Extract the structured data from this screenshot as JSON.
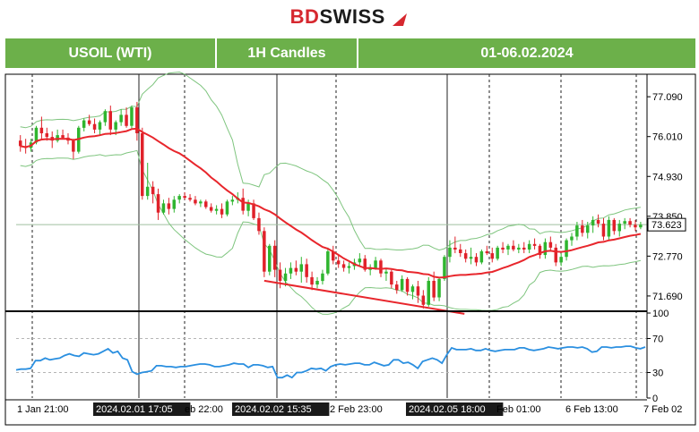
{
  "brand": {
    "part1": "BD",
    "part2": "SWISS"
  },
  "header": {
    "symbol": "USOIL (WTI)",
    "timeframe": "1H Candles",
    "date_range": "01-06.02.2024"
  },
  "colors": {
    "header_green": "#6cb04a",
    "bull": "#2fb52f",
    "bear": "#e0212a",
    "ma_red": "#e8262c",
    "band_green": "#7fc57f",
    "rsi_blue": "#2a8fe0",
    "brand_red": "#d6282f"
  },
  "chart_data": {
    "type": "candlestick",
    "price_axis": {
      "ticks": [
        77.09,
        76.01,
        74.93,
        73.85,
        72.77,
        71.69
      ],
      "range": [
        71.3,
        77.7
      ]
    },
    "current_price": {
      "label": "73.623",
      "value": 73.623
    },
    "time_labels": [
      "1 Jan 21:00",
      "2024.02.01 17:05",
      "eb 22:00",
      "2024.02.02 15:35",
      "2 Feb 23:00",
      "2024.02.05 18:00",
      "Feb 01:00",
      "6 Feb 13:00",
      "7 Feb 02"
    ],
    "highlighted_time_labels": [
      "2024.02.01 17:05",
      "2024.02.02 15:35",
      "2024.02.05 18:00"
    ],
    "rsi": {
      "ticks": [
        100,
        70,
        30,
        0
      ],
      "levels": [
        70,
        30
      ],
      "range": [
        0,
        100
      ],
      "values": [
        33,
        34,
        34,
        35,
        44,
        44,
        47,
        45,
        46,
        47,
        50,
        52,
        50,
        49,
        53,
        52,
        51,
        52,
        55,
        58,
        53,
        55,
        47,
        45,
        31,
        28,
        30,
        31,
        32,
        38,
        38,
        37,
        37,
        36,
        37,
        37,
        38,
        39,
        40,
        40,
        39,
        37,
        37,
        38,
        39,
        41,
        40,
        40,
        36,
        39,
        39,
        38,
        36,
        37,
        24,
        24,
        27,
        24,
        30,
        30,
        32,
        35,
        34,
        35,
        32,
        37,
        39,
        40,
        39,
        40,
        41,
        41,
        39,
        39,
        42,
        40,
        38,
        39,
        45,
        45,
        41,
        42,
        39,
        35,
        43,
        45,
        47,
        45,
        41,
        51,
        59,
        57,
        57,
        57,
        58,
        56,
        56,
        58,
        56,
        55,
        56,
        57,
        57,
        57,
        59,
        59,
        57,
        56,
        57,
        58,
        60,
        59,
        58,
        59,
        60,
        60,
        59,
        60,
        58,
        54,
        55,
        60,
        60,
        59,
        60,
        60,
        61,
        61,
        59,
        58,
        60
      ]
    },
    "candles": [
      [
        75.9,
        76.05,
        75.6,
        75.75
      ],
      [
        75.75,
        75.95,
        75.55,
        75.7
      ],
      [
        75.7,
        75.95,
        75.6,
        75.85
      ],
      [
        75.85,
        76.3,
        75.8,
        76.25
      ],
      [
        76.25,
        76.55,
        75.95,
        76.1
      ],
      [
        76.1,
        76.25,
        75.9,
        76.0
      ],
      [
        76.0,
        76.15,
        75.7,
        75.9
      ],
      [
        75.9,
        76.2,
        75.85,
        76.05
      ],
      [
        76.05,
        76.2,
        75.95,
        75.98
      ],
      [
        75.98,
        76.1,
        75.8,
        75.9
      ],
      [
        75.9,
        75.95,
        75.4,
        75.6
      ],
      [
        75.6,
        76.3,
        75.55,
        76.25
      ],
      [
        76.25,
        76.5,
        76.15,
        76.45
      ],
      [
        76.45,
        76.6,
        76.3,
        76.35
      ],
      [
        76.35,
        76.5,
        76.1,
        76.2
      ],
      [
        76.2,
        76.45,
        76.05,
        76.4
      ],
      [
        76.4,
        76.75,
        76.3,
        76.7
      ],
      [
        76.7,
        76.85,
        76.05,
        76.2
      ],
      [
        76.2,
        76.45,
        76.05,
        76.4
      ],
      [
        76.4,
        76.75,
        76.3,
        76.6
      ],
      [
        76.6,
        76.8,
        76.25,
        76.3
      ],
      [
        76.3,
        76.85,
        76.2,
        76.8
      ],
      [
        76.8,
        76.95,
        75.9,
        76.1
      ],
      [
        76.1,
        76.25,
        74.3,
        74.4
      ],
      [
        74.4,
        75.3,
        74.3,
        74.65
      ],
      [
        74.65,
        74.8,
        74.2,
        74.45
      ],
      [
        74.45,
        74.6,
        73.75,
        73.95
      ],
      [
        73.95,
        74.3,
        73.9,
        74.2
      ],
      [
        74.2,
        74.35,
        73.9,
        74.05
      ],
      [
        74.05,
        74.4,
        73.95,
        74.3
      ],
      [
        74.3,
        74.45,
        74.2,
        74.4
      ],
      [
        74.4,
        74.5,
        74.3,
        74.35
      ],
      [
        74.35,
        74.45,
        74.25,
        74.3
      ],
      [
        74.3,
        74.4,
        74.15,
        74.2
      ],
      [
        74.2,
        74.3,
        74.1,
        74.25
      ],
      [
        74.25,
        74.3,
        74.05,
        74.1
      ],
      [
        74.1,
        74.2,
        73.95,
        74.0
      ],
      [
        74.0,
        74.15,
        73.9,
        74.05
      ],
      [
        74.05,
        74.2,
        73.8,
        73.9
      ],
      [
        73.9,
        74.3,
        73.85,
        74.25
      ],
      [
        74.25,
        74.4,
        74.15,
        74.3
      ],
      [
        74.3,
        74.5,
        74.2,
        74.35
      ],
      [
        74.35,
        74.6,
        73.9,
        74.0
      ],
      [
        74.0,
        74.3,
        73.85,
        74.2
      ],
      [
        74.2,
        74.3,
        73.75,
        73.8
      ],
      [
        73.8,
        73.95,
        73.35,
        73.45
      ],
      [
        73.45,
        73.55,
        72.2,
        72.35
      ],
      [
        72.35,
        73.1,
        72.25,
        73.05
      ],
      [
        73.05,
        73.2,
        72.2,
        72.4
      ],
      [
        72.4,
        72.6,
        71.9,
        72.1
      ],
      [
        72.1,
        72.45,
        71.95,
        72.3
      ],
      [
        72.3,
        72.6,
        72.15,
        72.45
      ],
      [
        72.45,
        72.65,
        72.25,
        72.35
      ],
      [
        72.35,
        72.75,
        72.05,
        72.55
      ],
      [
        72.55,
        72.7,
        72.05,
        72.2
      ],
      [
        72.2,
        72.35,
        71.85,
        72.0
      ],
      [
        72.0,
        72.2,
        71.9,
        72.1
      ],
      [
        72.1,
        72.4,
        72.0,
        72.3
      ],
      [
        72.3,
        73.0,
        72.25,
        72.9
      ],
      [
        72.9,
        73.05,
        72.55,
        72.65
      ],
      [
        72.65,
        72.8,
        72.45,
        72.55
      ],
      [
        72.55,
        72.65,
        72.35,
        72.45
      ],
      [
        72.45,
        72.6,
        72.3,
        72.5
      ],
      [
        72.5,
        72.7,
        72.4,
        72.6
      ],
      [
        72.6,
        72.85,
        72.5,
        72.7
      ],
      [
        72.7,
        72.8,
        72.35,
        72.4
      ],
      [
        72.4,
        72.55,
        72.25,
        72.45
      ],
      [
        72.45,
        72.75,
        72.4,
        72.65
      ],
      [
        72.65,
        72.7,
        72.2,
        72.3
      ],
      [
        72.3,
        72.45,
        72.1,
        72.35
      ],
      [
        72.35,
        72.4,
        71.9,
        72.0
      ],
      [
        72.0,
        72.1,
        71.75,
        71.85
      ],
      [
        71.85,
        72.25,
        71.8,
        72.15
      ],
      [
        72.15,
        72.2,
        71.7,
        71.8
      ],
      [
        71.8,
        72.0,
        71.6,
        71.95
      ],
      [
        71.95,
        72.1,
        71.5,
        71.7
      ],
      [
        71.7,
        71.85,
        71.35,
        71.45
      ],
      [
        71.45,
        72.2,
        71.4,
        72.1
      ],
      [
        72.1,
        72.35,
        71.55,
        71.65
      ],
      [
        71.65,
        72.2,
        71.55,
        72.15
      ],
      [
        72.15,
        72.8,
        72.1,
        72.75
      ],
      [
        72.75,
        73.2,
        72.6,
        73.0
      ],
      [
        73.0,
        73.3,
        72.85,
        72.95
      ],
      [
        72.95,
        73.1,
        72.75,
        72.85
      ],
      [
        72.85,
        72.95,
        72.6,
        72.7
      ],
      [
        72.7,
        73.0,
        72.55,
        72.75
      ],
      [
        72.75,
        72.85,
        72.5,
        72.6
      ],
      [
        72.6,
        72.95,
        72.55,
        72.9
      ],
      [
        72.9,
        73.05,
        72.8,
        72.85
      ],
      [
        72.85,
        73.0,
        72.6,
        72.7
      ],
      [
        72.7,
        73.05,
        72.65,
        73.0
      ],
      [
        73.0,
        73.15,
        72.85,
        72.95
      ],
      [
        72.95,
        73.1,
        72.8,
        73.05
      ],
      [
        73.05,
        73.2,
        72.9,
        72.95
      ],
      [
        72.95,
        73.1,
        72.85,
        73.0
      ],
      [
        73.0,
        73.15,
        72.85,
        72.95
      ],
      [
        72.95,
        73.2,
        72.85,
        73.1
      ],
      [
        73.1,
        73.25,
        72.95,
        73.05
      ],
      [
        73.05,
        73.1,
        72.7,
        72.8
      ],
      [
        72.8,
        73.25,
        72.7,
        73.15
      ],
      [
        73.15,
        73.3,
        72.9,
        73.0
      ],
      [
        73.0,
        73.1,
        72.5,
        72.6
      ],
      [
        72.6,
        72.85,
        72.5,
        72.75
      ],
      [
        72.75,
        73.25,
        72.65,
        73.2
      ],
      [
        73.2,
        73.4,
        73.05,
        73.3
      ],
      [
        73.3,
        73.7,
        73.2,
        73.6
      ],
      [
        73.6,
        73.75,
        73.3,
        73.4
      ],
      [
        73.4,
        73.7,
        73.25,
        73.6
      ],
      [
        73.6,
        73.85,
        73.4,
        73.75
      ],
      [
        73.75,
        73.9,
        73.55,
        73.65
      ],
      [
        73.65,
        73.8,
        73.2,
        73.3
      ],
      [
        73.3,
        73.85,
        73.2,
        73.75
      ],
      [
        73.75,
        73.8,
        73.35,
        73.45
      ],
      [
        73.45,
        73.75,
        73.3,
        73.65
      ],
      [
        73.65,
        73.8,
        73.5,
        73.72
      ],
      [
        73.72,
        73.8,
        73.55,
        73.62
      ],
      [
        73.62,
        73.75,
        73.45,
        73.55
      ],
      [
        73.55,
        73.7,
        73.5,
        73.62
      ]
    ]
  }
}
